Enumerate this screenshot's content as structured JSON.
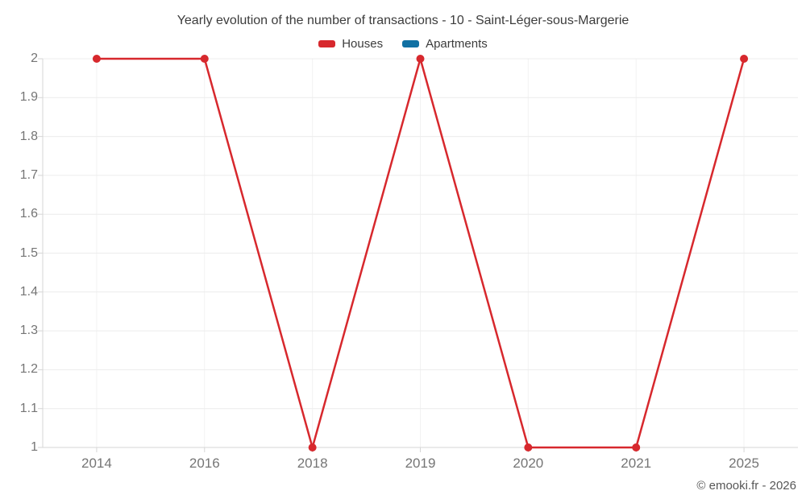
{
  "chart": {
    "title": "Yearly evolution of the number of transactions - 10 - Saint-Léger-sous-Margerie"
  },
  "chart_data": {
    "type": "line",
    "title": "Yearly evolution of the number of transactions - 10 - Saint-Léger-sous-Margerie",
    "categories": [
      "2014",
      "2016",
      "2018",
      "2019",
      "2020",
      "2021",
      "2025"
    ],
    "series": [
      {
        "name": "Houses",
        "color": "#d7282d",
        "values": [
          2,
          2,
          1,
          2,
          1,
          1,
          2
        ]
      },
      {
        "name": "Apartments",
        "color": "#1170a3",
        "values": []
      }
    ],
    "xlabel": "",
    "ylabel": "",
    "ylim": [
      1,
      2
    ],
    "y_ticks": [
      "2",
      "1.9",
      "1.8",
      "1.7",
      "1.6",
      "1.5",
      "1.4",
      "1.3",
      "1.2",
      "1.1",
      "1"
    ],
    "grid": true,
    "legend_position": "top",
    "marker": "circle"
  },
  "footer": {
    "copyright": "© emooki.fr - 2026"
  },
  "colors": {
    "background": "#ffffff",
    "grid_horizontal": "#ececec",
    "grid_vertical": "#f2f2f2",
    "axis": "#d6d6d6",
    "axis_text": "#757575",
    "title_text": "#3c3c3c",
    "footer_text": "#575757"
  }
}
